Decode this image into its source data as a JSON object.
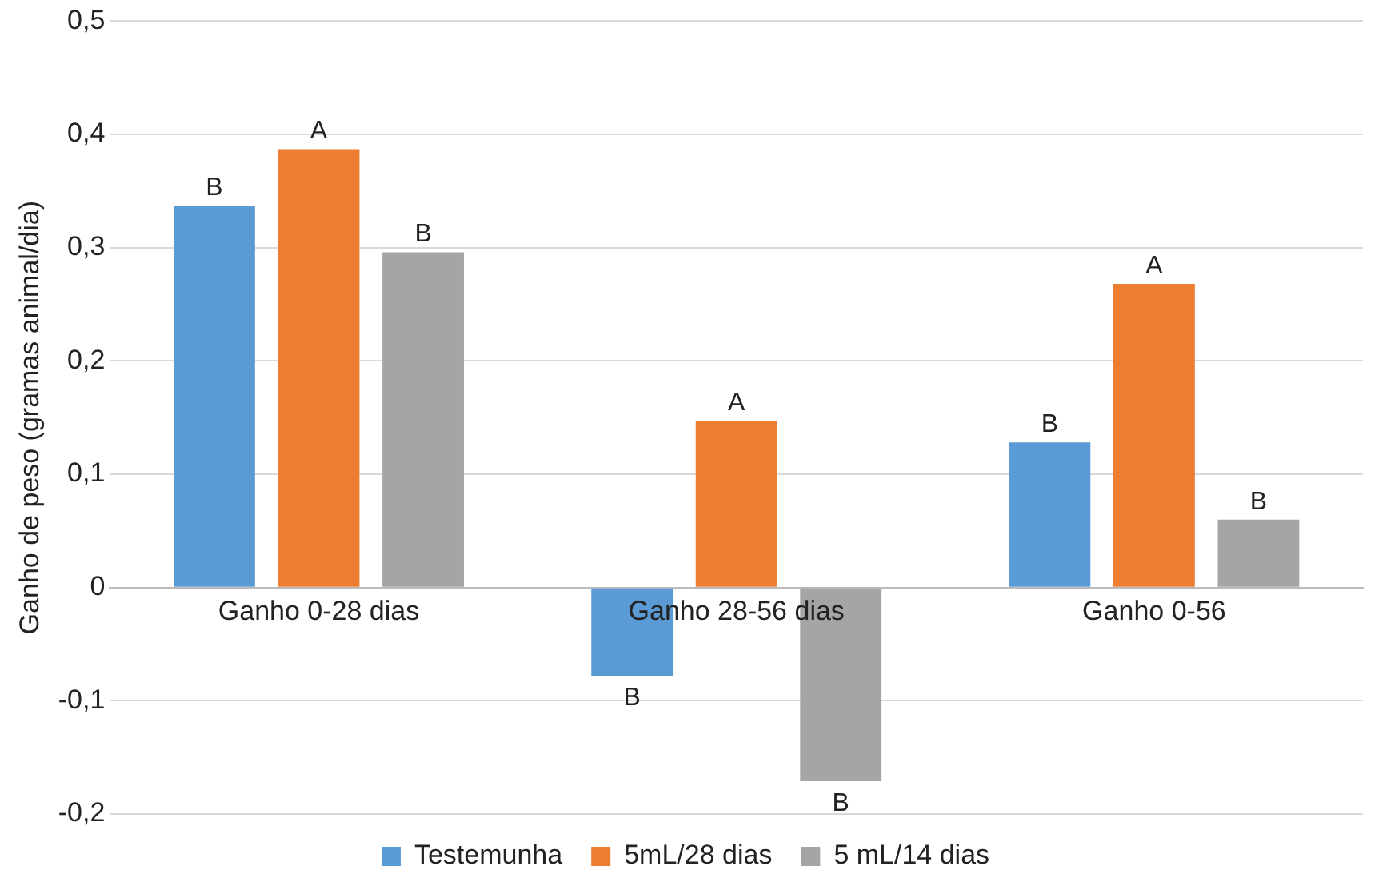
{
  "chart_data": {
    "type": "bar",
    "ylabel": "Ganho de peso (gramas animal/dia)",
    "categories": [
      "Ganho 0-28 dias",
      "Ganho 28-56 dias",
      "Ganho 0-56"
    ],
    "series": [
      {
        "name": "Testemunha",
        "color": "#5b9bd5",
        "values": [
          0.337,
          -0.078,
          0.128
        ],
        "value_labels": [
          "B",
          "B",
          "B"
        ]
      },
      {
        "name": "5mL/28 dias",
        "color": "#ed7d31",
        "values": [
          0.387,
          0.147,
          0.268
        ],
        "value_labels": [
          "A",
          "A",
          "A"
        ]
      },
      {
        "name": "5 mL/14 dias",
        "color": "#a5a5a5",
        "values": [
          0.296,
          -0.171,
          0.06
        ],
        "value_labels": [
          "B",
          "B",
          "B"
        ]
      }
    ],
    "ylim": [
      -0.2,
      0.5
    ],
    "yticks": [
      {
        "value": -0.2,
        "label": "-0,2"
      },
      {
        "value": -0.1,
        "label": "-0,1"
      },
      {
        "value": 0,
        "label": "0"
      },
      {
        "value": 0.1,
        "label": "0,1"
      },
      {
        "value": 0.2,
        "label": "0,2"
      },
      {
        "value": 0.3,
        "label": "0,3"
      },
      {
        "value": 0.4,
        "label": "0,4"
      },
      {
        "value": 0.5,
        "label": "0,5"
      }
    ],
    "grid": "y",
    "legend": "bottom"
  }
}
